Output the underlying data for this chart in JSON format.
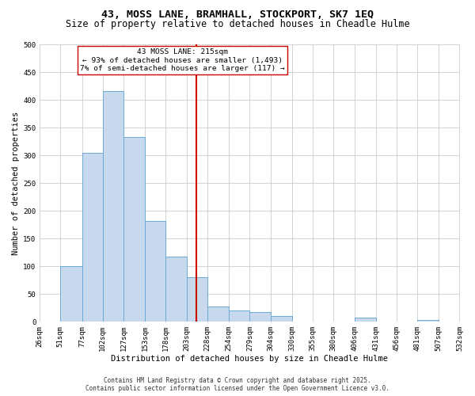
{
  "title": "43, MOSS LANE, BRAMHALL, STOCKPORT, SK7 1EQ",
  "subtitle": "Size of property relative to detached houses in Cheadle Hulme",
  "xlabel": "Distribution of detached houses by size in Cheadle Hulme",
  "ylabel": "Number of detached properties",
  "bar_color": "#c8d9ee",
  "bar_edge_color": "#6aaad4",
  "background_color": "#ffffff",
  "grid_color": "#cccccc",
  "bin_edges": [
    26,
    51,
    77,
    102,
    127,
    153,
    178,
    203,
    228,
    254,
    279,
    304,
    330,
    355,
    380,
    406,
    431,
    456,
    481,
    507,
    532
  ],
  "bin_labels": [
    "26sqm",
    "51sqm",
    "77sqm",
    "102sqm",
    "127sqm",
    "153sqm",
    "178sqm",
    "203sqm",
    "228sqm",
    "254sqm",
    "279sqm",
    "304sqm",
    "330sqm",
    "355sqm",
    "380sqm",
    "406sqm",
    "431sqm",
    "456sqm",
    "481sqm",
    "507sqm",
    "532sqm"
  ],
  "counts": [
    0,
    100,
    305,
    416,
    333,
    181,
    118,
    80,
    28,
    20,
    18,
    10,
    0,
    0,
    0,
    7,
    0,
    0,
    3,
    0,
    0
  ],
  "vline_x": 215,
  "vline_color": "#cc0000",
  "annotation_title": "43 MOSS LANE: 215sqm",
  "annotation_line1": "← 93% of detached houses are smaller (1,493)",
  "annotation_line2": "7% of semi-detached houses are larger (117) →",
  "annotation_box_color": "#ffffff",
  "annotation_box_edge": "#cc0000",
  "ylim": [
    0,
    500
  ],
  "yticks": [
    0,
    50,
    100,
    150,
    200,
    250,
    300,
    350,
    400,
    450,
    500
  ],
  "footnote1": "Contains HM Land Registry data © Crown copyright and database right 2025.",
  "footnote2": "Contains public sector information licensed under the Open Government Licence v3.0.",
  "title_fontsize": 9.5,
  "subtitle_fontsize": 8.5,
  "tick_fontsize": 6.5,
  "label_fontsize": 7.5,
  "annotation_fontsize": 6.8,
  "footnote_fontsize": 5.5
}
